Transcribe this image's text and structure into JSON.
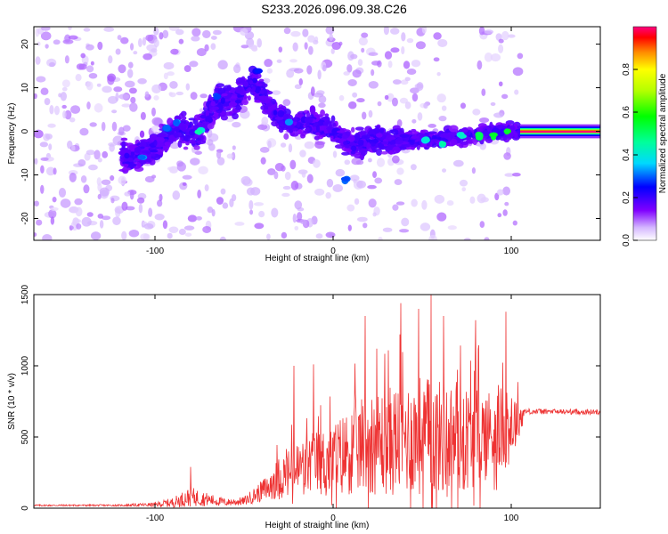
{
  "title": "S233.2026.096.09.38.C26",
  "chart_data": [
    {
      "type": "heatmap",
      "name": "spectrogram",
      "xlabel": "Height of straight line (km)",
      "ylabel": "Frequency (Hz)",
      "xlim": [
        -168,
        150
      ],
      "ylim": [
        -25,
        24
      ],
      "xticks": [
        -100,
        0,
        100
      ],
      "xtick_labels": [
        "-100",
        "0",
        "100"
      ],
      "yticks": [
        -20,
        -10,
        0,
        10,
        20
      ],
      "ytick_labels": [
        "-20",
        "-10",
        "0",
        "10",
        "20"
      ],
      "colorbar": {
        "label": "Normalized spectral amplitude",
        "range": [
          0,
          1
        ],
        "ticks": [
          0.0,
          0.2,
          0.4,
          0.6,
          0.8
        ],
        "tick_labels": [
          "0.0",
          "0.2",
          "0.4",
          "0.6",
          "0.8"
        ]
      },
      "ridge": [
        {
          "x": -168,
          "f": 0
        },
        {
          "x": -140,
          "f": -2
        },
        {
          "x": -115,
          "f": -6
        },
        {
          "x": -100,
          "f": -4
        },
        {
          "x": -90,
          "f": 0
        },
        {
          "x": -75,
          "f": 0
        },
        {
          "x": -65,
          "f": 7
        },
        {
          "x": -55,
          "f": 7
        },
        {
          "x": -45,
          "f": 12
        },
        {
          "x": -35,
          "f": 5
        },
        {
          "x": -25,
          "f": 2
        },
        {
          "x": -10,
          "f": 2
        },
        {
          "x": 0,
          "f": 0
        },
        {
          "x": 10,
          "f": -3
        },
        {
          "x": 25,
          "f": -2
        },
        {
          "x": 40,
          "f": -2
        },
        {
          "x": 55,
          "f": -2
        },
        {
          "x": 75,
          "f": -1
        },
        {
          "x": 95,
          "f": 0
        },
        {
          "x": 105,
          "f": 0
        }
      ],
      "tone": {
        "x_start": 105,
        "x_end": 150,
        "f": 0,
        "amplitude": 1.0
      },
      "highlights": [
        {
          "x": -107,
          "f": -6,
          "a": 0.35
        },
        {
          "x": -93,
          "f": 0.5,
          "a": 0.3
        },
        {
          "x": -88,
          "f": 2,
          "a": 0.35
        },
        {
          "x": -75,
          "f": 0,
          "a": 0.45
        },
        {
          "x": -65,
          "f": 8,
          "a": 0.3
        },
        {
          "x": -42,
          "f": 14,
          "a": 0.25
        },
        {
          "x": -25,
          "f": 2,
          "a": 0.35
        },
        {
          "x": 7,
          "f": -11,
          "a": 0.3
        },
        {
          "x": 52,
          "f": -2,
          "a": 0.4
        },
        {
          "x": 62,
          "f": -3,
          "a": 0.45
        },
        {
          "x": 72,
          "f": -1,
          "a": 0.45
        },
        {
          "x": 82,
          "f": -1,
          "a": 0.5
        },
        {
          "x": 90,
          "f": -1,
          "a": 0.55
        },
        {
          "x": 98,
          "f": 0,
          "a": 0.6
        }
      ]
    },
    {
      "type": "line",
      "name": "snr",
      "xlabel": "Height of straight line (km)",
      "ylabel": "SNR (10 * v/v)",
      "color": "#ee3333",
      "xlim": [
        -168,
        150
      ],
      "ylim": [
        0,
        1500
      ],
      "xticks": [
        -100,
        0,
        100
      ],
      "xtick_labels": [
        "-100",
        "0",
        "100"
      ],
      "yticks": [
        0,
        500,
        1000,
        1500
      ],
      "ytick_labels": [
        "0",
        "500",
        "1000",
        "1500"
      ],
      "envelope": [
        {
          "x": -168,
          "base": 20,
          "spread": 12
        },
        {
          "x": -120,
          "base": 20,
          "spread": 12
        },
        {
          "x": -100,
          "base": 25,
          "spread": 30
        },
        {
          "x": -90,
          "base": 40,
          "spread": 70
        },
        {
          "x": -80,
          "base": 80,
          "spread": 140
        },
        {
          "x": -70,
          "base": 60,
          "spread": 90
        },
        {
          "x": -60,
          "base": 40,
          "spread": 50
        },
        {
          "x": -50,
          "base": 50,
          "spread": 60
        },
        {
          "x": -40,
          "base": 120,
          "spread": 150
        },
        {
          "x": -30,
          "base": 200,
          "spread": 350
        },
        {
          "x": -20,
          "base": 250,
          "spread": 450
        },
        {
          "x": -10,
          "base": 300,
          "spread": 500
        },
        {
          "x": 0,
          "base": 300,
          "spread": 600
        },
        {
          "x": 10,
          "base": 380,
          "spread": 700
        },
        {
          "x": 20,
          "base": 420,
          "spread": 800
        },
        {
          "x": 30,
          "base": 430,
          "spread": 850
        },
        {
          "x": 40,
          "base": 450,
          "spread": 900
        },
        {
          "x": 50,
          "base": 470,
          "spread": 950
        },
        {
          "x": 60,
          "base": 460,
          "spread": 900
        },
        {
          "x": 70,
          "base": 450,
          "spread": 850
        },
        {
          "x": 80,
          "base": 470,
          "spread": 800
        },
        {
          "x": 90,
          "base": 500,
          "spread": 700
        },
        {
          "x": 100,
          "base": 550,
          "spread": 600
        },
        {
          "x": 108,
          "base": 680,
          "spread": 40
        },
        {
          "x": 150,
          "base": 675,
          "spread": 35
        }
      ],
      "peaks": [
        {
          "x": 18,
          "y": 1350
        },
        {
          "x": 38,
          "y": 1440
        },
        {
          "x": 48,
          "y": 1400
        },
        {
          "x": 55,
          "y": 1500
        },
        {
          "x": 62,
          "y": 1350
        },
        {
          "x": 80,
          "y": 1320
        },
        {
          "x": 97,
          "y": 1380
        },
        {
          "x": -22,
          "y": 1000
        },
        {
          "x": -11,
          "y": 1010
        },
        {
          "x": -80,
          "y": 290
        }
      ]
    }
  ]
}
